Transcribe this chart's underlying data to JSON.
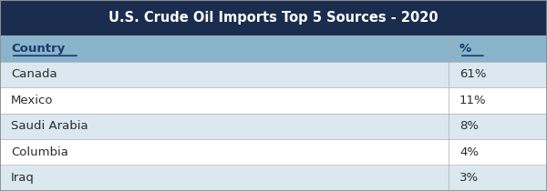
{
  "title": "U.S. Crude Oil Imports Top 5 Sources - 2020",
  "header": [
    "Country",
    "%"
  ],
  "rows": [
    [
      "Canada",
      "61%"
    ],
    [
      "Mexico",
      "11%"
    ],
    [
      "Saudi Arabia",
      "8%"
    ],
    [
      "Columbia",
      "4%"
    ],
    [
      "Iraq",
      "3%"
    ]
  ],
  "title_bg_color": "#1a2d4f",
  "title_text_color": "#ffffff",
  "header_bg_color": "#8ab4cc",
  "header_text_color": "#1a3a6b",
  "row_bg_even": "#ffffff",
  "row_bg_odd": "#dce8f0",
  "row_text_color": "#2c2c2c",
  "border_color": "#aaaaaa",
  "outer_border_color": "#888888",
  "col_split": 0.82
}
